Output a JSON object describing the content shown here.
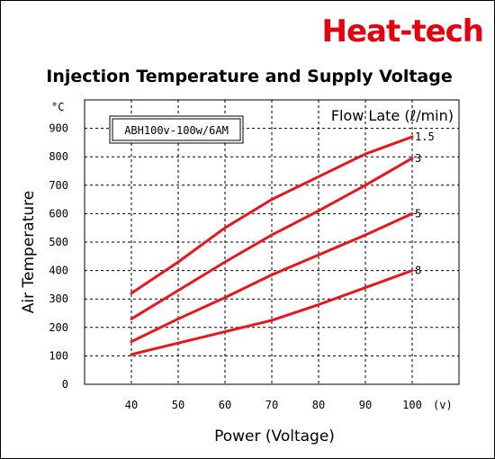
{
  "brand": {
    "name": "Heat-tech",
    "color": "#e3000f"
  },
  "chart_data": {
    "type": "line",
    "title": "Injection Temperature and Supply Voltage",
    "xlabel": "Power (Voltage)",
    "ylabel": "Air Temperature",
    "x_unit": "(v)",
    "y_unit": "°C",
    "xlim": [
      30,
      110
    ],
    "ylim": [
      0,
      1000
    ],
    "x_ticks": [
      40,
      50,
      60,
      70,
      80,
      90,
      100
    ],
    "y_ticks": [
      0,
      100,
      200,
      300,
      400,
      500,
      600,
      700,
      800,
      900
    ],
    "grid": true,
    "model_label": "ABH100v-100w/6AM",
    "legend_title": "Flow Late (ℓ/min)",
    "line_color": "#e8161c",
    "series": [
      {
        "name": "1.5",
        "x": [
          40,
          50,
          60,
          70,
          80,
          90,
          100
        ],
        "values": [
          320,
          430,
          550,
          650,
          730,
          810,
          870
        ]
      },
      {
        "name": "3",
        "x": [
          40,
          50,
          60,
          70,
          80,
          90,
          100
        ],
        "values": [
          230,
          330,
          430,
          525,
          610,
          700,
          795
        ]
      },
      {
        "name": "5",
        "x": [
          40,
          50,
          60,
          70,
          80,
          90,
          100
        ],
        "values": [
          150,
          230,
          305,
          385,
          455,
          525,
          600
        ]
      },
      {
        "name": "8",
        "x": [
          40,
          50,
          60,
          70,
          80,
          90,
          100
        ],
        "values": [
          105,
          145,
          185,
          225,
          280,
          340,
          400
        ]
      }
    ]
  }
}
